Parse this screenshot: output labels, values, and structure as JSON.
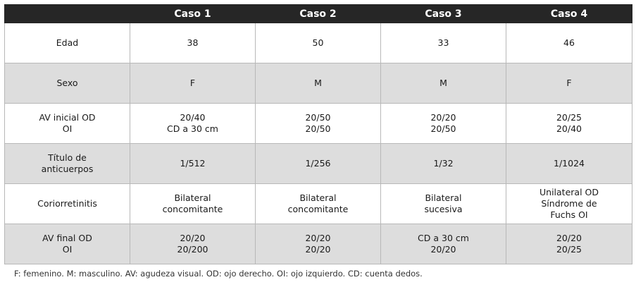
{
  "table": {
    "headers": [
      "",
      "Caso 1",
      "Caso 2",
      "Caso 3",
      "Caso 4"
    ],
    "rows": [
      {
        "label": [
          "Edad"
        ],
        "cells": [
          [
            "38"
          ],
          [
            "50"
          ],
          [
            "33"
          ],
          [
            "46"
          ]
        ]
      },
      {
        "label": [
          "Sexo"
        ],
        "cells": [
          [
            "F"
          ],
          [
            "M"
          ],
          [
            "M"
          ],
          [
            "F"
          ]
        ]
      },
      {
        "label": [
          "AV inicial OD",
          "OI"
        ],
        "cells": [
          [
            "20/40",
            "CD a 30 cm"
          ],
          [
            "20/50",
            "20/50"
          ],
          [
            "20/20",
            "20/50"
          ],
          [
            "20/25",
            "20/40"
          ]
        ]
      },
      {
        "label": [
          "Título de",
          "anticuerpos"
        ],
        "cells": [
          [
            "1/512"
          ],
          [
            "1/256"
          ],
          [
            "1/32"
          ],
          [
            "1/1024"
          ]
        ]
      },
      {
        "label": [
          "Coriorretinitis"
        ],
        "cells": [
          [
            "Bilateral",
            "concomitante"
          ],
          [
            "Bilateral",
            "concomitante"
          ],
          [
            "Bilateral",
            "sucesiva"
          ],
          [
            "Unilateral OD",
            "Síndrome de",
            "Fuchs OI"
          ]
        ]
      },
      {
        "label": [
          "AV final OD",
          "OI"
        ],
        "cells": [
          [
            "20/20",
            "20/200"
          ],
          [
            "20/20",
            "20/20"
          ],
          [
            "CD a 30 cm",
            "20/20"
          ],
          [
            "20/20",
            "20/25"
          ]
        ]
      }
    ]
  },
  "footnote": "F: femenino. M: masculino. AV: agudeza visual. OD: ojo derecho. OI: ojo izquierdo. CD: cuenta dedos."
}
